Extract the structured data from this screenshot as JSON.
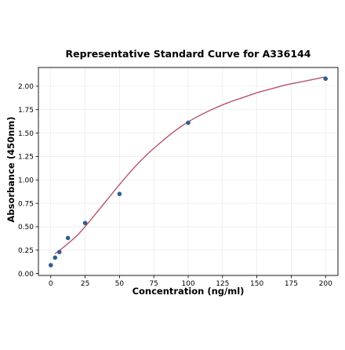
{
  "chart_data": {
    "type": "scatter",
    "title": "Representative Standard Curve for A336144",
    "xlabel": "Concentration (ng/ml)",
    "ylabel": "Absorbance (450nm)",
    "xlim": [
      -9,
      209
    ],
    "ylim": [
      -0.02,
      2.2
    ],
    "xticks": [
      0,
      25,
      50,
      75,
      100,
      125,
      150,
      175,
      200
    ],
    "xtick_labels": [
      "0",
      "25",
      "50",
      "75",
      "100",
      "125",
      "150",
      "175",
      "200"
    ],
    "yticks": [
      0.0,
      0.25,
      0.5,
      0.75,
      1.0,
      1.25,
      1.5,
      1.75,
      2.0
    ],
    "ytick_labels": [
      "0.00",
      "0.25",
      "0.50",
      "0.75",
      "1.00",
      "1.25",
      "1.50",
      "1.75",
      "2.00"
    ],
    "grid": true,
    "legend": "none",
    "series": [
      {
        "type": "scatter",
        "color": "#2e5f8f",
        "points": [
          {
            "x": 0,
            "y": 0.09
          },
          {
            "x": 3.125,
            "y": 0.17
          },
          {
            "x": 6.25,
            "y": 0.23
          },
          {
            "x": 12.5,
            "y": 0.38
          },
          {
            "x": 25,
            "y": 0.54
          },
          {
            "x": 50,
            "y": 0.85
          },
          {
            "x": 100,
            "y": 1.61
          },
          {
            "x": 200,
            "y": 2.08
          }
        ]
      },
      {
        "type": "line",
        "color": "#b5546a",
        "points": [
          {
            "x": 3,
            "y": 0.21
          },
          {
            "x": 10,
            "y": 0.29
          },
          {
            "x": 20,
            "y": 0.42
          },
          {
            "x": 30,
            "y": 0.59
          },
          {
            "x": 40,
            "y": 0.77
          },
          {
            "x": 50,
            "y": 0.95
          },
          {
            "x": 60,
            "y": 1.12
          },
          {
            "x": 70,
            "y": 1.27
          },
          {
            "x": 80,
            "y": 1.4
          },
          {
            "x": 90,
            "y": 1.52
          },
          {
            "x": 100,
            "y": 1.62
          },
          {
            "x": 110,
            "y": 1.7
          },
          {
            "x": 120,
            "y": 1.77
          },
          {
            "x": 130,
            "y": 1.83
          },
          {
            "x": 140,
            "y": 1.88
          },
          {
            "x": 150,
            "y": 1.93
          },
          {
            "x": 160,
            "y": 1.97
          },
          {
            "x": 170,
            "y": 2.01
          },
          {
            "x": 180,
            "y": 2.04
          },
          {
            "x": 190,
            "y": 2.07
          },
          {
            "x": 200,
            "y": 2.1
          }
        ]
      }
    ]
  }
}
